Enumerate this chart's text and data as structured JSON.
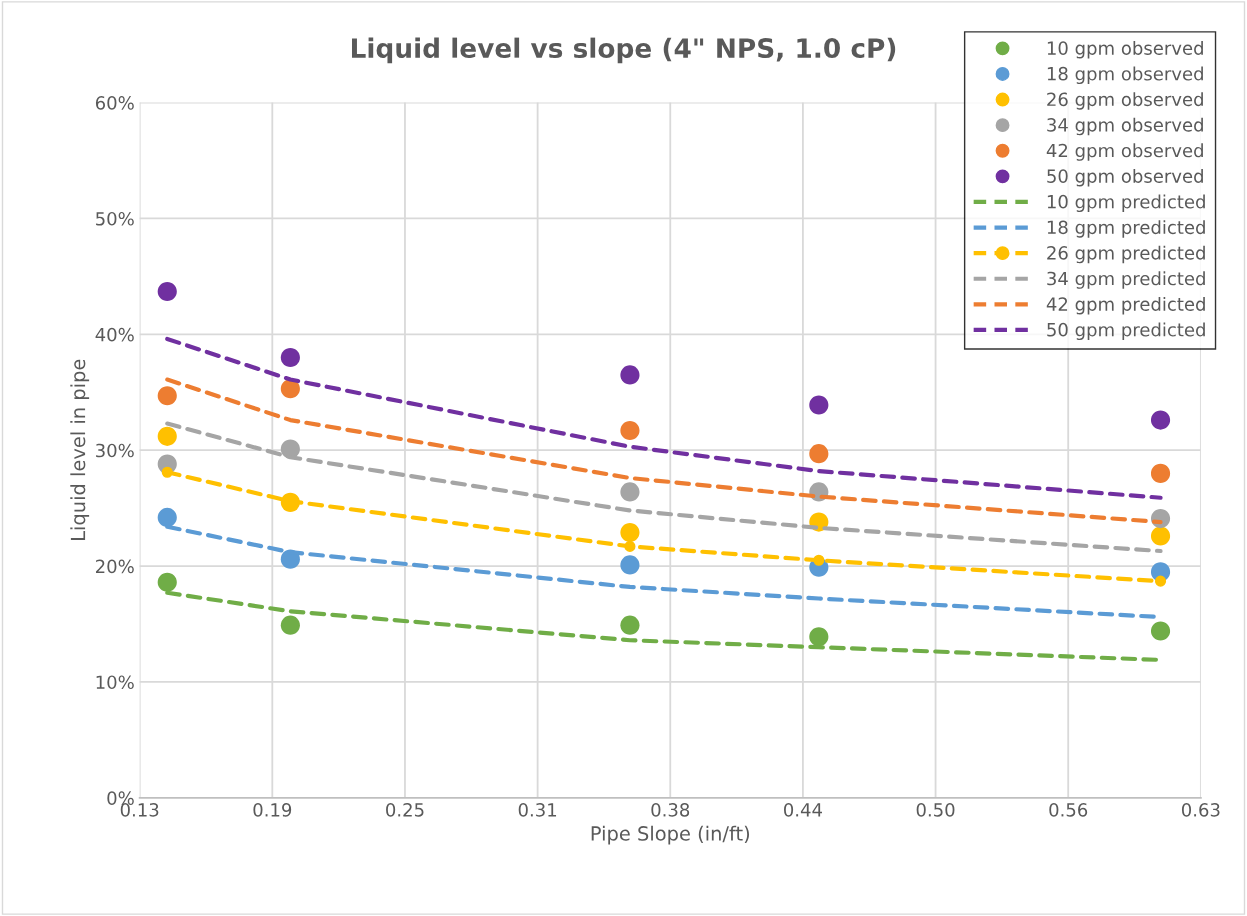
{
  "chart_data": {
    "type": "scatter",
    "title": "Liquid level vs slope (4\" NPS, 1.0 cP)",
    "xlabel": "Pipe Slope (in/ft)",
    "ylabel": "Liquid level in pipe",
    "x": [
      0.138,
      0.196,
      0.356,
      0.445,
      0.606
    ],
    "series": [
      {
        "name": "10 gpm observed",
        "marker": "circle",
        "color": "#70ad47",
        "values": [
          18.6,
          14.9,
          14.9,
          13.9,
          14.4
        ]
      },
      {
        "name": "18 gpm observed",
        "marker": "circle",
        "color": "#5b9bd5",
        "values": [
          24.2,
          20.6,
          20.1,
          19.9,
          19.5
        ]
      },
      {
        "name": "26 gpm observed",
        "marker": "circle",
        "color": "#ffc000",
        "values": [
          31.2,
          25.5,
          22.9,
          23.8,
          22.6
        ]
      },
      {
        "name": "34 gpm observed",
        "marker": "circle",
        "color": "#a5a5a5",
        "values": [
          28.8,
          30.1,
          26.4,
          26.4,
          24.1
        ]
      },
      {
        "name": "42 gpm observed",
        "marker": "circle",
        "color": "#ed7d31",
        "values": [
          34.7,
          35.3,
          31.7,
          29.7,
          28.0
        ]
      },
      {
        "name": "50 gpm observed",
        "marker": "circle",
        "color": "#7030a0",
        "values": [
          43.7,
          38.0,
          36.5,
          33.9,
          32.6
        ]
      },
      {
        "name": "10 gpm predicted",
        "type": "line",
        "marker": "none",
        "line_style": "dashed",
        "color": "#70ad47",
        "values": [
          17.7,
          16.1,
          13.6,
          13.0,
          11.9
        ]
      },
      {
        "name": "18 gpm predicted",
        "type": "line",
        "marker": "none",
        "line_style": "dashed",
        "color": "#5b9bd5",
        "values": [
          23.4,
          21.2,
          18.2,
          17.2,
          15.6
        ]
      },
      {
        "name": "26 gpm predicted",
        "type": "line",
        "marker": "circle",
        "line_style": "dashed",
        "color": "#ffc000",
        "values": [
          28.1,
          25.6,
          21.7,
          20.5,
          18.7
        ]
      },
      {
        "name": "34 gpm predicted",
        "type": "line",
        "marker": "none",
        "line_style": "dashed",
        "color": "#a5a5a5",
        "values": [
          32.3,
          29.4,
          24.8,
          23.3,
          21.3
        ]
      },
      {
        "name": "42 gpm predicted",
        "type": "line",
        "marker": "none",
        "line_style": "dashed",
        "color": "#ed7d31",
        "values": [
          36.1,
          32.6,
          27.6,
          26.0,
          23.8
        ]
      },
      {
        "name": "50 gpm predicted",
        "type": "line",
        "marker": "none",
        "line_style": "dashed",
        "color": "#7030a0",
        "values": [
          39.6,
          36.1,
          30.3,
          28.2,
          25.9
        ]
      }
    ],
    "xlim": [
      0.125,
      0.625
    ],
    "xticks": [
      {
        "value": 0.125,
        "label": "0.13"
      },
      {
        "value": 0.1875,
        "label": "0.19"
      },
      {
        "value": 0.25,
        "label": "0.25"
      },
      {
        "value": 0.3125,
        "label": "0.31"
      },
      {
        "value": 0.375,
        "label": "0.38"
      },
      {
        "value": 0.4375,
        "label": "0.44"
      },
      {
        "value": 0.5,
        "label": "0.50"
      },
      {
        "value": 0.5625,
        "label": "0.56"
      },
      {
        "value": 0.625,
        "label": "0.63"
      }
    ],
    "ylim": [
      0,
      60
    ],
    "yticks": [
      {
        "value": 0,
        "label": "0%"
      },
      {
        "value": 10,
        "label": "10%"
      },
      {
        "value": 20,
        "label": "20%"
      },
      {
        "value": 30,
        "label": "30%"
      },
      {
        "value": 40,
        "label": "40%"
      },
      {
        "value": 50,
        "label": "50%"
      },
      {
        "value": 60,
        "label": "60%"
      }
    ],
    "grid": true,
    "legend": "top right"
  }
}
